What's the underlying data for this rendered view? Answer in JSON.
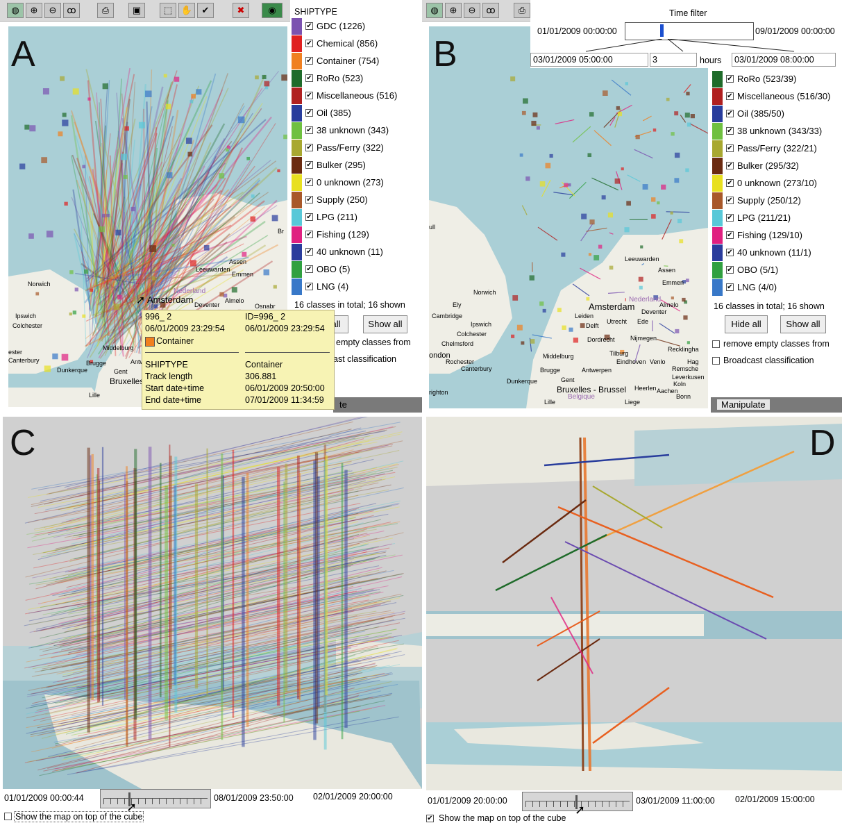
{
  "panelA": {
    "letter": "A",
    "legend_header": "SHIPTYPE",
    "classes": [
      {
        "label": "GDC (1226)",
        "color": "#7b52b0"
      },
      {
        "label": "Chemical (856)",
        "color": "#e02020"
      },
      {
        "label": "Container (754)",
        "color": "#f08020"
      },
      {
        "label": "RoRo (523)",
        "color": "#1f6b2a"
      },
      {
        "label": "Miscellaneous (516)",
        "color": "#b02020"
      },
      {
        "label": "Oil (385)",
        "color": "#283c9c"
      },
      {
        "label": "38 unknown (343)",
        "color": "#6fc040"
      },
      {
        "label": "Pass/Ferry (322)",
        "color": "#a8a830"
      },
      {
        "label": "Bulker (295)",
        "color": "#6a2a10"
      },
      {
        "label": "0 unknown (273)",
        "color": "#e8e020"
      },
      {
        "label": "Supply (250)",
        "color": "#a8582a"
      },
      {
        "label": "LPG (211)",
        "color": "#58c8d8"
      },
      {
        "label": "Fishing (129)",
        "color": "#e02080"
      },
      {
        "label": "40 unknown (11)",
        "color": "#2a3c9c"
      },
      {
        "label": "OBO (5)",
        "color": "#30a040"
      },
      {
        "label": "LNG (4)",
        "color": "#3878c8"
      }
    ],
    "summary": "16 classes in total; 16 shown",
    "hide_all": "all",
    "show_all": "Show all",
    "remove_empty": "empty classes from",
    "broadcast": "ast classification",
    "tab_label": "te",
    "map_labels": [
      "Leeuwarden",
      "Assen",
      "Emmen",
      "Norwich",
      "Amsterdam",
      "Deventer",
      "Almelo",
      "Osnabr",
      "Ipswich",
      "Colchester",
      "Middelburg",
      "Brugge",
      "Antwe",
      "Gent",
      "Bruxelles",
      "Dunkerque",
      "Canterbury",
      "Lille",
      "Nederland",
      "ester",
      "Br"
    ],
    "tooltip": {
      "r1c1": "996_ 2",
      "r1c2": "ID=996_ 2",
      "r2c1": "06/01/2009 23:29:54",
      "r2c2": "06/01/2009 23:29:54",
      "class": "Container",
      "k1": "SHIPTYPE",
      "v1": "Container",
      "k2": "Track length",
      "v2": "306.881",
      "k3": "Start date+time",
      "v3": "06/01/2009 20:50:00",
      "k4": "End date+time",
      "v4": "07/01/2009 11:34:59"
    }
  },
  "panelB": {
    "letter": "B",
    "time_filter": {
      "title": "Time filter",
      "start": "01/01/2009 00:00:00",
      "end": "09/01/2009 00:00:00",
      "window_start": "03/01/2009 05:00:00",
      "window_len": "3",
      "unit": "hours",
      "window_end": "03/01/2009 08:00:00"
    },
    "classes": [
      {
        "label": "RoRo (523/39)",
        "color": "#1f6b2a"
      },
      {
        "label": "Miscellaneous (516/30)",
        "color": "#b02020"
      },
      {
        "label": "Oil (385/50)",
        "color": "#283c9c"
      },
      {
        "label": "38 unknown (343/33)",
        "color": "#6fc040"
      },
      {
        "label": "Pass/Ferry (322/21)",
        "color": "#a8a830"
      },
      {
        "label": "Bulker (295/32)",
        "color": "#6a2a10"
      },
      {
        "label": "0 unknown (273/10)",
        "color": "#e8e020"
      },
      {
        "label": "Supply (250/12)",
        "color": "#a8582a"
      },
      {
        "label": "LPG (211/21)",
        "color": "#58c8d8"
      },
      {
        "label": "Fishing (129/10)",
        "color": "#e02080"
      },
      {
        "label": "40 unknown (11/1)",
        "color": "#2a3c9c"
      },
      {
        "label": "OBO (5/1)",
        "color": "#30a040"
      },
      {
        "label": "LNG (4/0)",
        "color": "#3878c8"
      }
    ],
    "summary": "16 classes in total; 16 shown",
    "hide_all": "Hide all",
    "show_all": "Show all",
    "remove_empty": "remove empty classes from",
    "broadcast": "Broadcast classification",
    "tab_label": "Manipulate",
    "map_labels": [
      "Leeuwarden",
      "Assen",
      "Emmen",
      "Norwich",
      "Amsterdam",
      "Deventer",
      "Almelo",
      "Ely",
      "Cambridge",
      "Ipswich",
      "Colchester",
      "Chelmsford",
      "ondon",
      "Rochester",
      "Canterbury",
      "Leiden",
      "Utrecht",
      "Ede",
      "Delft",
      "Dordrecht",
      "Nijmegen",
      "Middelburg",
      "Tilburg",
      "Eindhoven",
      "Venlo",
      "Brugge",
      "Gent",
      "Antwerpen",
      "Bruxelles - Brussel",
      "Dunkerque",
      "Lille",
      "Liege",
      "Heerlen",
      "Aachen",
      "Koln",
      "Bonn",
      "Recklingha",
      "Remsche",
      "Leverkusen",
      "Hag",
      "righton",
      "ull",
      "Nederland",
      "Belgique"
    ]
  },
  "panelC": {
    "letter": "C",
    "time_start": "01/01/2009 00:00:44",
    "time_end": "08/01/2009 23:50:00",
    "time_current": "02/01/2009 20:00:00",
    "show_map_label": "Show the map on top of the cube",
    "show_map_checked": false
  },
  "panelD": {
    "letter": "D",
    "time_start": "01/01/2009 20:00:00",
    "time_end": "03/01/2009 11:00:00",
    "time_current": "02/01/2009 15:00:00",
    "show_map_label": "Show the map on top of the cube",
    "show_map_checked": true
  }
}
